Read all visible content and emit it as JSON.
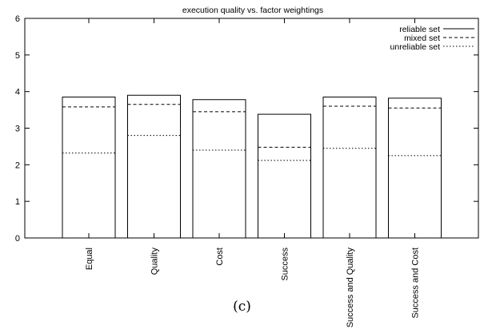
{
  "chart_data": {
    "type": "bar",
    "title": "execution quality vs. factor weightings",
    "xlabel": "",
    "ylabel": "",
    "ylim": [
      0,
      6
    ],
    "yticks": [
      "0",
      "1",
      "2",
      "3",
      "4",
      "5",
      "6"
    ],
    "categories": [
      "Equal",
      "Quality",
      "Cost",
      "Success",
      "Success and Quality",
      "Success and Cost"
    ],
    "series": [
      {
        "name": "reliable set",
        "line_style": "solid",
        "values": [
          3.85,
          3.9,
          3.78,
          3.38,
          3.85,
          3.82
        ]
      },
      {
        "name": "mixed set",
        "line_style": "dashed",
        "values": [
          3.58,
          3.65,
          3.45,
          2.48,
          3.6,
          3.55
        ]
      },
      {
        "name": "unreliable set",
        "line_style": "dotted",
        "values": [
          2.32,
          2.8,
          2.4,
          2.12,
          2.45,
          2.25
        ]
      }
    ],
    "grid": false,
    "legend_position": "top-right",
    "panel_label": "(c)"
  }
}
